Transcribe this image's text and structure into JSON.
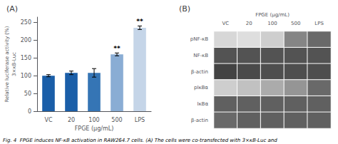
{
  "chart_data": [
    {
      "type": "bar",
      "title": "(A)",
      "categories": [
        "VC",
        "20",
        "100",
        "500",
        "LPS"
      ],
      "values": [
        100,
        108,
        108,
        160,
        235
      ],
      "errors": [
        3,
        5,
        12,
        4,
        5
      ],
      "colors": [
        "#1a5ea8",
        "#1a5ea8",
        "#3575b5",
        "#8aadd4",
        "#c5d5e8"
      ],
      "annotations": [
        {
          "category": "500",
          "text": "**"
        },
        {
          "category": "LPS",
          "text": "**"
        }
      ],
      "ylabel": "Relative luciferase activity (%)\n3×κB-Luc",
      "xlabel": "FPGE (μg/mL)",
      "ylim": [
        0,
        265
      ],
      "yticks": [
        0,
        50,
        100,
        150,
        200,
        250
      ],
      "grid": false,
      "caption": "Fig. 4  FPGE induces NF-κB activation in RAW264.7 cells. (A) The cells were co-transfected with 3×κB-Luc and"
    },
    {
      "type": "heatmap",
      "title": "(B)",
      "xlabel": "FPGE (μg/mL)",
      "x": [
        "VC",
        "20",
        "100",
        "500",
        "LPS"
      ],
      "y": [
        "pNF-κB",
        "NF-κB",
        "β-actin",
        "pIκBα",
        "IκBα",
        "β-actin"
      ],
      "cells": [
        [
          0.18,
          0.15,
          0.22,
          0.55,
          0.68
        ],
        [
          0.78,
          0.78,
          0.78,
          0.78,
          0.78
        ],
        [
          0.85,
          0.82,
          0.8,
          0.8,
          0.8
        ],
        [
          0.22,
          0.28,
          0.38,
          0.48,
          0.68
        ],
        [
          0.72,
          0.72,
          0.72,
          0.72,
          0.72
        ],
        [
          0.68,
          0.72,
          0.72,
          0.72,
          0.72
        ]
      ],
      "color_range": [
        0,
        1
      ],
      "color": "#222222"
    }
  ]
}
